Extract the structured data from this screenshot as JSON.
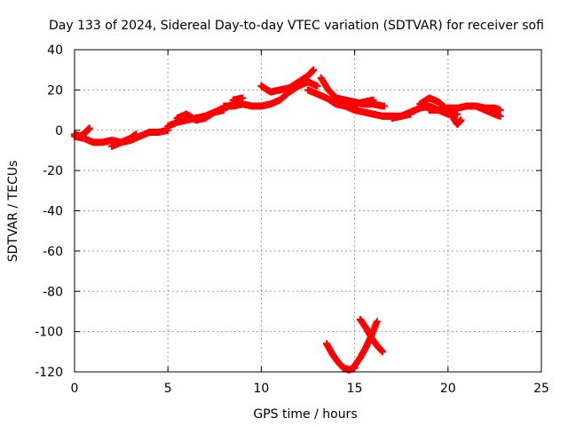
{
  "chart_data": {
    "type": "scatter",
    "title": "Day 133 of 2024, Sidereal Day-to-day VTEC variation (SDTVAR) for receiver sofi",
    "xlabel": "GPS time / hours",
    "ylabel": "SDTVAR / TECUs",
    "xlim": [
      0,
      25
    ],
    "ylim": [
      -120,
      40
    ],
    "x_ticks": [
      0,
      5,
      10,
      15,
      20,
      25
    ],
    "y_ticks": [
      -120,
      -100,
      -80,
      -60,
      -40,
      -20,
      0,
      20,
      40
    ],
    "grid": true,
    "marker_color": "#ff0000",
    "series": [
      {
        "segments": [
          {
            "x": [
              0.0,
              0.5,
              1.0,
              1.5,
              2.0,
              2.5,
              3.0,
              3.5,
              4.0,
              4.5,
              5.0
            ],
            "y": [
              -3,
              -4,
              -6,
              -6,
              -5,
              -6,
              -5,
              -3,
              -1,
              -1,
              0
            ]
          },
          {
            "x": [
              0.0,
              0.3,
              0.6,
              0.8
            ],
            "y": [
              -2,
              -3,
              -1,
              1
            ]
          },
          {
            "x": [
              2.0,
              2.5,
              3.0,
              3.3
            ],
            "y": [
              -8,
              -6,
              -4,
              -2
            ]
          },
          {
            "x": [
              5.0,
              5.5,
              6.0,
              6.5,
              7.0,
              7.5,
              8.0,
              8.5
            ],
            "y": [
              2,
              4,
              5,
              6,
              7,
              9,
              11,
              13
            ]
          },
          {
            "x": [
              5.5,
              6.0,
              6.5,
              7.0,
              7.5,
              8.0
            ],
            "y": [
              6,
              8,
              5,
              6,
              9,
              10
            ]
          },
          {
            "x": [
              8.0,
              8.5,
              9.0,
              9.5,
              10.0,
              10.5,
              11.0,
              11.5,
              12.0,
              12.5,
              13.0
            ],
            "y": [
              12,
              12,
              13,
              12,
              12,
              13,
              15,
              19,
              22,
              24,
              22
            ]
          },
          {
            "x": [
              8.5,
              9.0
            ],
            "y": [
              15,
              16
            ]
          },
          {
            "x": [
              10.0,
              10.5,
              11.0,
              11.5,
              12.0,
              12.5,
              12.8
            ],
            "y": [
              22,
              19,
              20,
              21,
              24,
              27,
              30
            ]
          },
          {
            "x": [
              12.5,
              13.0,
              13.5,
              14.0,
              14.5,
              15.0,
              15.5,
              16.0,
              16.5,
              16.7
            ],
            "y": [
              20,
              18,
              16,
              13,
              12,
              10,
              9,
              8,
              7,
              7
            ]
          },
          {
            "x": [
              13.2,
              13.6,
              14.0,
              14.5,
              15.0,
              15.5,
              16.0,
              16.5,
              16.6
            ],
            "y": [
              26,
              20,
              16,
              15,
              14,
              13,
              13,
              12,
              12
            ]
          },
          {
            "x": [
              14.0,
              14.5,
              15.0,
              15.5,
              16.0
            ],
            "y": [
              16,
              14,
              13,
              14,
              15
            ]
          },
          {
            "x": [
              16.7,
              17.0,
              17.5,
              18.0,
              18.5,
              19.0,
              19.5,
              20.0,
              20.5
            ],
            "y": [
              7,
              7,
              7,
              9,
              11,
              12,
              10,
              8,
              8
            ]
          },
          {
            "x": [
              17.0,
              17.5,
              18.0
            ],
            "y": [
              6,
              7,
              8
            ]
          },
          {
            "x": [
              18.5,
              19.0,
              19.5,
              20.0,
              20.3,
              20.5,
              20.7
            ],
            "y": [
              13,
              16,
              14,
              10,
              6,
              3,
              5
            ]
          },
          {
            "x": [
              19.0,
              19.5,
              20.0,
              20.5,
              21.0,
              21.5,
              22.0,
              22.5,
              22.8
            ],
            "y": [
              10,
              10,
              11,
              11,
              12,
              12,
              11,
              11,
              10
            ]
          },
          {
            "x": [
              21.5,
              22.0,
              22.5,
              22.8
            ],
            "y": [
              12,
              10,
              8,
              7
            ]
          },
          {
            "x": [
              13.5,
              13.8,
              14.1,
              14.4,
              14.7,
              15.0
            ],
            "y": [
              -106,
              -111,
              -115,
              -118,
              -119,
              -118
            ]
          },
          {
            "x": [
              15.0,
              15.3,
              15.6,
              15.9,
              16.2
            ],
            "y": [
              -117,
              -113,
              -108,
              -102,
              -95
            ]
          },
          {
            "x": [
              15.3,
              15.6,
              15.9,
              16.2,
              16.5
            ],
            "y": [
              -94,
              -98,
              -103,
              -107,
              -110
            ]
          }
        ]
      }
    ]
  }
}
